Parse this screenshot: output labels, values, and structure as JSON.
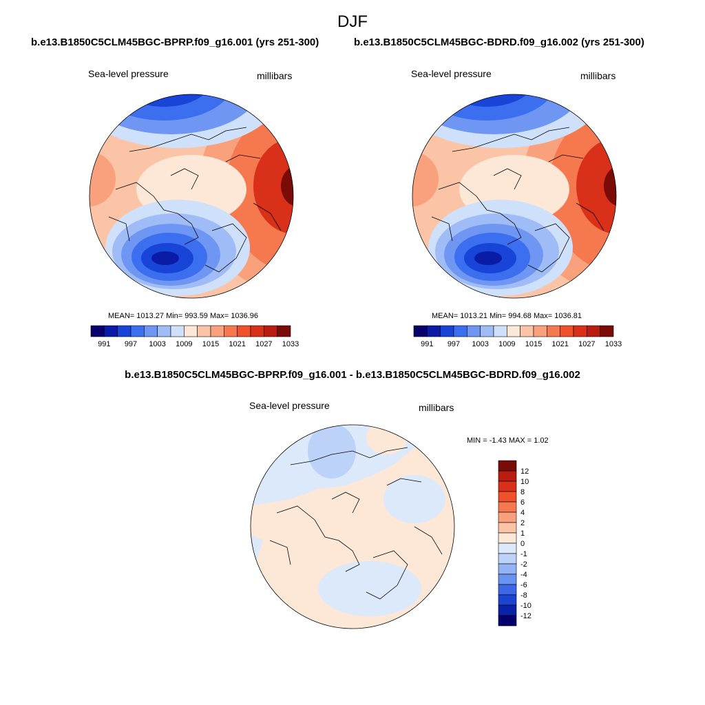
{
  "page": {
    "season_title": "DJF"
  },
  "panels": {
    "left": {
      "run_title": "b.e13.B1850C5CLM45BGC-BPRP.f09_g16.001 (yrs 251-300)",
      "variable": "Sea-level pressure",
      "units": "millibars",
      "stats": "MEAN= 1013.27  Min= 993.59  Max= 1036.96"
    },
    "right": {
      "run_title": "b.e13.B1850C5CLM45BGC-BDRD.f09_g16.002 (yrs 251-300)",
      "variable": "Sea-level pressure",
      "units": "millibars",
      "stats": "MEAN= 1013.21  Min= 994.68  Max= 1036.81"
    },
    "diff": {
      "title": "b.e13.B1850C5CLM45BGC-BPRP.f09_g16.001 - b.e13.B1850C5CLM45BGC-BDRD.f09_g16.002",
      "variable": "Sea-level pressure",
      "units": "millibars",
      "stats": "MIN =  -1.43 MAX =   1.02"
    }
  },
  "colorbars": {
    "horizontal": {
      "labels": [
        "991",
        "997",
        "1003",
        "1009",
        "1015",
        "1021",
        "1027",
        "1033"
      ],
      "colors": [
        "#08006b",
        "#0a1ca6",
        "#1844d8",
        "#3c6ef0",
        "#6e96f2",
        "#a0bcf6",
        "#cfe0fa",
        "#fde7d6",
        "#fcc4a6",
        "#f9a07c",
        "#f6784e",
        "#f0502a",
        "#d9301a",
        "#b81d10",
        "#7a0b06"
      ]
    },
    "vertical": {
      "labels": [
        "12",
        "10",
        "8",
        "6",
        "4",
        "2",
        "1",
        "0",
        "-1",
        "-2",
        "-4",
        "-6",
        "-8",
        "-10",
        "-12"
      ],
      "colors": [
        "#7a0b06",
        "#b81d10",
        "#d9301a",
        "#f0502a",
        "#f6784e",
        "#f9a07c",
        "#fcc4a6",
        "#fde7d6",
        "#dbe9fb",
        "#bcd2f8",
        "#93b3f4",
        "#6a92f0",
        "#3c68e8",
        "#1d44d0",
        "#0a22a8",
        "#06006e"
      ]
    }
  }
}
